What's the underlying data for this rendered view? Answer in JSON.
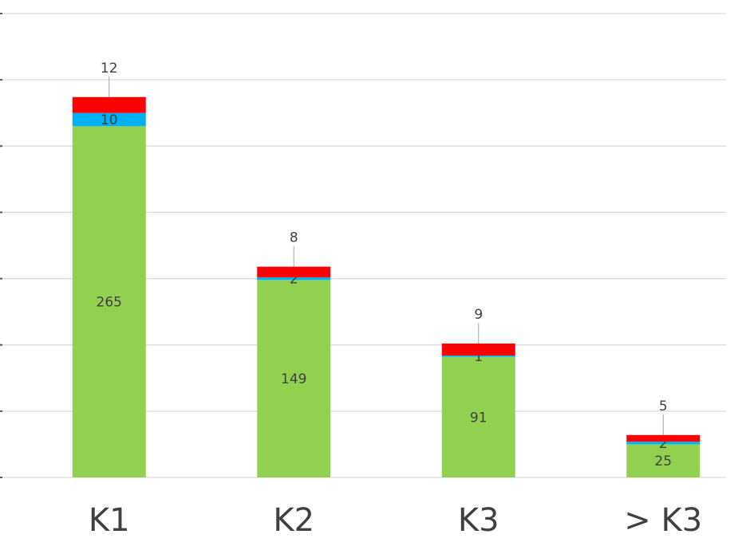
{
  "chart_data": {
    "type": "stacked_bar",
    "categories": [
      "K1",
      "K2",
      "K3",
      "> K3"
    ],
    "series": [
      {
        "color": "#92d050",
        "values": [
          265,
          149,
          91,
          25
        ]
      },
      {
        "color": "#00b0f0",
        "values": [
          10,
          2,
          1,
          2
        ]
      },
      {
        "color": "#ff0000",
        "values": [
          12,
          8,
          9,
          5
        ]
      }
    ],
    "ylim": [
      0,
      350
    ],
    "yticks": [
      0,
      50,
      100,
      150,
      200,
      250,
      300,
      350
    ],
    "grid": true
  }
}
